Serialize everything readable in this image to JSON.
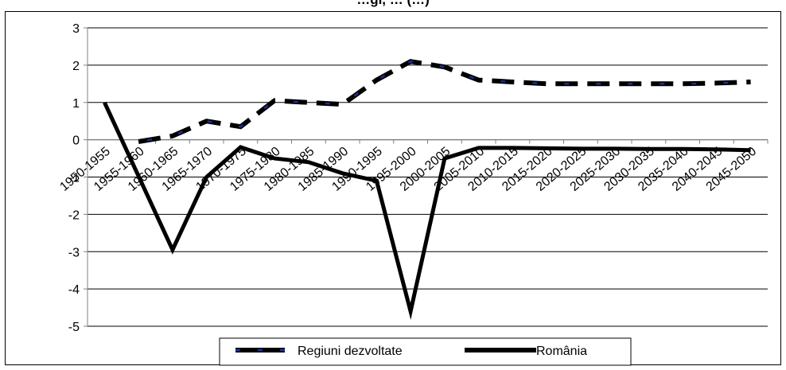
{
  "chart_data": {
    "type": "line",
    "title": "…gi, … (…)",
    "categories": [
      "1950-1955",
      "1955-1960",
      "1960-1965",
      "1965-1970",
      "1970-1975",
      "1975-1980",
      "1980-1985",
      "1985-1990",
      "1990-1995",
      "1995-2000",
      "2000-2005",
      "2005-2010",
      "2010-2015",
      "2015-2020",
      "2020-2025",
      "2025-2030",
      "2030-2035",
      "2035-2040",
      "2040-2045",
      "2045-2050"
    ],
    "ylim": [
      -5,
      3
    ],
    "yticks": [
      "3",
      "2",
      "1",
      "0",
      "-1",
      "-2",
      "-3",
      "-4",
      "-5"
    ],
    "grid": true,
    "legend_position": "bottom",
    "series": [
      {
        "name": "Regiuni dezvoltate",
        "style": "dashed",
        "color": "#000000",
        "dash_color": "#1f2f8f",
        "values": [
          null,
          -0.05,
          0.1,
          0.5,
          0.35,
          1.05,
          1.0,
          0.95,
          1.6,
          2.1,
          1.95,
          1.6,
          1.55,
          1.5,
          1.5,
          1.5,
          1.5,
          1.5,
          1.52,
          1.55
        ]
      },
      {
        "name": "România",
        "style": "solid",
        "color": "#000000",
        "values": [
          1.0,
          null,
          -2.95,
          -1.0,
          -0.2,
          -0.5,
          -0.6,
          -0.9,
          -1.1,
          -4.6,
          -0.5,
          -0.22,
          -0.22,
          -0.23,
          -0.24,
          -0.24,
          -0.25,
          -0.25,
          -0.26,
          -0.28
        ]
      }
    ]
  }
}
